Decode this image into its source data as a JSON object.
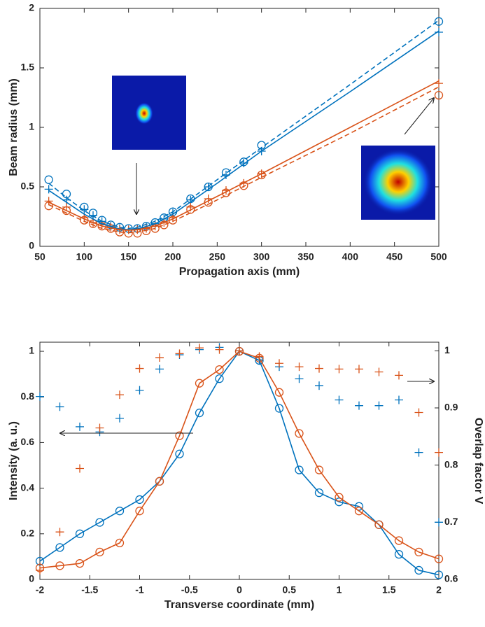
{
  "chart_data": [
    {
      "type": "line",
      "xlabel": "Propagation axis (mm)",
      "ylabel": "Beam radius (mm)",
      "xlim": [
        50,
        500
      ],
      "ylim": [
        0,
        2
      ],
      "xticks": [
        50,
        100,
        150,
        200,
        250,
        300,
        350,
        400,
        450,
        500
      ],
      "yticks": [
        0,
        {
          "value": 0.5,
          "label": "0.5"
        },
        1,
        {
          "value": 1.5,
          "label": "1.5"
        },
        2
      ],
      "series": [
        {
          "color": "#0072bd",
          "marker": "o",
          "line": null,
          "x": [
            60,
            80,
            100,
            110,
            120,
            130,
            140,
            150,
            160,
            170,
            180,
            190,
            200,
            220,
            240,
            260,
            280,
            300,
            500
          ],
          "values": [
            0.56,
            0.44,
            0.33,
            0.28,
            0.22,
            0.18,
            0.16,
            0.15,
            0.15,
            0.17,
            0.2,
            0.24,
            0.29,
            0.4,
            0.5,
            0.62,
            0.71,
            0.85,
            1.89
          ]
        },
        {
          "color": "#0072bd",
          "marker": "+",
          "line": null,
          "x": [
            60,
            80,
            100,
            110,
            120,
            130,
            140,
            150,
            160,
            170,
            180,
            190,
            200,
            220,
            240,
            260,
            280,
            300,
            500
          ],
          "values": [
            0.48,
            0.39,
            0.31,
            0.26,
            0.21,
            0.17,
            0.15,
            0.14,
            0.15,
            0.16,
            0.19,
            0.23,
            0.28,
            0.39,
            0.5,
            0.6,
            0.7,
            0.8,
            1.8
          ]
        },
        {
          "color": "#d95319",
          "marker": "o",
          "line": null,
          "x": [
            60,
            80,
            100,
            110,
            120,
            130,
            140,
            150,
            160,
            170,
            180,
            190,
            200,
            220,
            240,
            260,
            280,
            300,
            500
          ],
          "values": [
            0.34,
            0.3,
            0.22,
            0.19,
            0.17,
            0.15,
            0.12,
            0.11,
            0.11,
            0.13,
            0.15,
            0.18,
            0.22,
            0.31,
            0.37,
            0.45,
            0.51,
            0.6,
            1.27
          ]
        },
        {
          "color": "#d95319",
          "marker": "+",
          "line": null,
          "x": [
            60,
            80,
            100,
            110,
            120,
            130,
            140,
            150,
            160,
            170,
            180,
            190,
            200,
            220,
            240,
            260,
            280,
            300,
            500
          ],
          "values": [
            0.38,
            0.33,
            0.24,
            0.2,
            0.18,
            0.16,
            0.14,
            0.14,
            0.14,
            0.15,
            0.17,
            0.2,
            0.24,
            0.33,
            0.4,
            0.47,
            0.53,
            0.61,
            1.37
          ]
        },
        {
          "color": "#0072bd",
          "marker": null,
          "line": "solid",
          "x": [
            60,
            80,
            100,
            120,
            140,
            150,
            160,
            180,
            200,
            250,
            300,
            400,
            500
          ],
          "values": [
            0.47,
            0.37,
            0.27,
            0.19,
            0.145,
            0.14,
            0.145,
            0.19,
            0.27,
            0.53,
            0.8,
            1.3,
            1.81
          ]
        },
        {
          "color": "#0072bd",
          "marker": null,
          "line": "dashed",
          "x": [
            60,
            80,
            100,
            120,
            140,
            150,
            160,
            180,
            200,
            250,
            300,
            400,
            500
          ],
          "values": [
            0.53,
            0.41,
            0.3,
            0.21,
            0.16,
            0.15,
            0.16,
            0.21,
            0.29,
            0.56,
            0.83,
            1.36,
            1.9
          ]
        },
        {
          "color": "#d95319",
          "marker": null,
          "line": "solid",
          "x": [
            60,
            80,
            100,
            120,
            140,
            150,
            160,
            180,
            200,
            250,
            300,
            400,
            500
          ],
          "values": [
            0.37,
            0.3,
            0.23,
            0.17,
            0.14,
            0.135,
            0.14,
            0.17,
            0.23,
            0.42,
            0.61,
            1.0,
            1.39
          ]
        },
        {
          "color": "#d95319",
          "marker": null,
          "line": "dashed",
          "x": [
            60,
            80,
            100,
            120,
            140,
            150,
            160,
            180,
            200,
            250,
            300,
            400,
            500
          ],
          "values": [
            0.35,
            0.28,
            0.21,
            0.15,
            0.12,
            0.115,
            0.12,
            0.15,
            0.21,
            0.39,
            0.58,
            0.95,
            1.34
          ]
        }
      ]
    },
    {
      "type": "line",
      "xlabel": "Transverse coordinate (mm)",
      "ylabel": "Intensity (a. u.)",
      "y2label": "Overlap factor V",
      "xlim": [
        -2,
        2
      ],
      "ylim": [
        0,
        1.04
      ],
      "y2lim": [
        0.6,
        1.015
      ],
      "xticks": [
        -2,
        -1.5,
        -1,
        -0.5,
        0,
        0.5,
        1,
        1.5,
        2
      ],
      "yticks": [
        0,
        0.2,
        0.4,
        0.6,
        0.8,
        1
      ],
      "y2ticks": [
        0.6,
        0.7,
        0.8,
        0.9,
        1
      ],
      "x": [
        -2,
        -1.8,
        -1.6,
        -1.4,
        -1.2,
        -1,
        -0.8,
        -0.6,
        -0.4,
        -0.2,
        0,
        0.2,
        0.4,
        0.6,
        0.8,
        1,
        1.2,
        1.4,
        1.6,
        1.8,
        2
      ],
      "series": [
        {
          "color": "#0072bd",
          "marker": "o",
          "line": "solid",
          "values": [
            0.08,
            0.14,
            0.2,
            0.25,
            0.3,
            0.35,
            0.43,
            0.55,
            0.73,
            0.88,
            1,
            0.96,
            0.75,
            0.48,
            0.38,
            0.34,
            0.32,
            0.24,
            0.11,
            0.04,
            0.02
          ]
        },
        {
          "color": "#d95319",
          "marker": "o",
          "line": "solid",
          "values": [
            0.05,
            0.06,
            0.07,
            0.12,
            0.16,
            0.3,
            0.43,
            0.63,
            0.86,
            0.92,
            1,
            0.97,
            0.82,
            0.64,
            0.48,
            0.36,
            0.3,
            0.24,
            0.17,
            0.12,
            0.09
          ]
        },
        {
          "color": "#0072bd",
          "marker": "+",
          "line": null,
          "axis": "y2",
          "values": [
            0.92,
            0.902,
            0.867,
            0.858,
            0.882,
            0.931,
            0.968,
            0.993,
            1.002,
            1.006,
            1,
            0.984,
            0.972,
            0.951,
            0.939,
            0.914,
            0.904,
            0.904,
            0.914,
            0.822,
            0.7
          ]
        },
        {
          "color": "#d95319",
          "marker": "+",
          "line": null,
          "axis": "y2",
          "values": [
            0.616,
            0.683,
            0.794,
            0.865,
            0.923,
            0.969,
            0.988,
            0.995,
            1.005,
            1.002,
            1,
            0.99,
            0.978,
            0.972,
            0.969,
            0.968,
            0.968,
            0.963,
            0.957,
            0.892,
            0.822
          ]
        }
      ]
    }
  ]
}
